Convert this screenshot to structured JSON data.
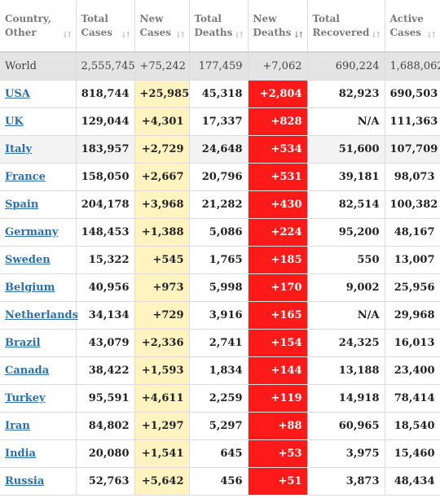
{
  "columns": [
    {
      "line1": "Country,",
      "line2": "Other"
    },
    {
      "line1": "Total",
      "line2": "Cases"
    },
    {
      "line1": "New",
      "line2": "Cases"
    },
    {
      "line1": "Total",
      "line2": "Deaths"
    },
    {
      "line1": "New",
      "line2": "Deaths"
    },
    {
      "line1": "Total",
      "line2": "Recovered"
    },
    {
      "line1": "Active",
      "line2": "Cases"
    }
  ],
  "world": {
    "country": "World",
    "total_cases": "2,555,745",
    "new_cases": "+75,242",
    "total_deaths": "177,459",
    "new_deaths": "+7,062",
    "total_recovered": "690,224",
    "active_cases": "1,688,062"
  },
  "rows": [
    {
      "country": "USA",
      "total_cases": "818,744",
      "new_cases": "+25,985",
      "total_deaths": "45,318",
      "new_deaths": "+2,804",
      "total_recovered": "82,923",
      "active_cases": "690,503"
    },
    {
      "country": "UK",
      "total_cases": "129,044",
      "new_cases": "+4,301",
      "total_deaths": "17,337",
      "new_deaths": "+828",
      "total_recovered": "N/A",
      "active_cases": "111,363"
    },
    {
      "country": "Italy",
      "total_cases": "183,957",
      "new_cases": "+2,729",
      "total_deaths": "24,648",
      "new_deaths": "+534",
      "total_recovered": "51,600",
      "active_cases": "107,709"
    },
    {
      "country": "France",
      "total_cases": "158,050",
      "new_cases": "+2,667",
      "total_deaths": "20,796",
      "new_deaths": "+531",
      "total_recovered": "39,181",
      "active_cases": "98,073"
    },
    {
      "country": "Spain",
      "total_cases": "204,178",
      "new_cases": "+3,968",
      "total_deaths": "21,282",
      "new_deaths": "+430",
      "total_recovered": "82,514",
      "active_cases": "100,382"
    },
    {
      "country": "Germany",
      "total_cases": "148,453",
      "new_cases": "+1,388",
      "total_deaths": "5,086",
      "new_deaths": "+224",
      "total_recovered": "95,200",
      "active_cases": "48,167"
    },
    {
      "country": "Sweden",
      "total_cases": "15,322",
      "new_cases": "+545",
      "total_deaths": "1,765",
      "new_deaths": "+185",
      "total_recovered": "550",
      "active_cases": "13,007"
    },
    {
      "country": "Belgium",
      "total_cases": "40,956",
      "new_cases": "+973",
      "total_deaths": "5,998",
      "new_deaths": "+170",
      "total_recovered": "9,002",
      "active_cases": "25,956"
    },
    {
      "country": "Netherlands",
      "total_cases": "34,134",
      "new_cases": "+729",
      "total_deaths": "3,916",
      "new_deaths": "+165",
      "total_recovered": "N/A",
      "active_cases": "29,968"
    },
    {
      "country": "Brazil",
      "total_cases": "43,079",
      "new_cases": "+2,336",
      "total_deaths": "2,741",
      "new_deaths": "+154",
      "total_recovered": "24,325",
      "active_cases": "16,013"
    },
    {
      "country": "Canada",
      "total_cases": "38,422",
      "new_cases": "+1,593",
      "total_deaths": "1,834",
      "new_deaths": "+144",
      "total_recovered": "13,188",
      "active_cases": "23,400"
    },
    {
      "country": "Turkey",
      "total_cases": "95,591",
      "new_cases": "+4,611",
      "total_deaths": "2,259",
      "new_deaths": "+119",
      "total_recovered": "14,918",
      "active_cases": "78,414"
    },
    {
      "country": "Iran",
      "total_cases": "84,802",
      "new_cases": "+1,297",
      "total_deaths": "5,297",
      "new_deaths": "+88",
      "total_recovered": "60,965",
      "active_cases": "18,540"
    },
    {
      "country": "India",
      "total_cases": "20,080",
      "new_cases": "+1,541",
      "total_deaths": "645",
      "new_deaths": "+53",
      "total_recovered": "3,975",
      "active_cases": "15,460"
    },
    {
      "country": "Russia",
      "total_cases": "52,763",
      "new_cases": "+5,642",
      "total_deaths": "456",
      "new_deaths": "+51",
      "total_recovered": "3,873",
      "active_cases": "48,434"
    }
  ],
  "sort": {
    "active_column": 4,
    "icon": "sort-arrows-icon"
  },
  "colors": {
    "new_cases_bg": "#fff3bf",
    "new_deaths_bg": "#ff1a1a",
    "world_bg": "#e4e4e4",
    "link": "#2e6fa8"
  }
}
